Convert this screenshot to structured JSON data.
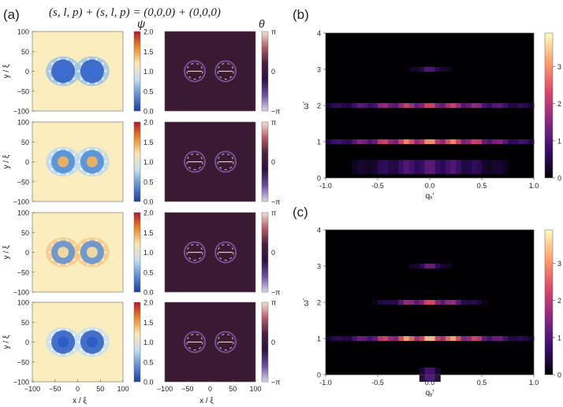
{
  "figure": {
    "panel_labels": {
      "a": "(a)",
      "b": "(b)",
      "c": "(c)"
    },
    "equation": "(s, l, p) + (s, l, p) = (0,0,0) + (0,0,0)"
  },
  "panel_a": {
    "ylabel": "y / ξ",
    "xlabel": "x / ξ",
    "x_ticks": [
      "−100",
      "−50",
      "0",
      "50",
      "100"
    ],
    "y_ticks": [
      "100",
      "50",
      "0",
      "−50",
      "−100"
    ],
    "psi_colorbar": {
      "label": "ψ",
      "ticks": [
        "2.0",
        "1.5",
        "1.0",
        "0.5",
        "0.0"
      ],
      "colors": [
        "#b2182b",
        "#e88a2c",
        "#fbe7b3",
        "#c6dff0",
        "#5b8fd0",
        "#1f3f9a"
      ]
    },
    "theta_colorbar": {
      "label": "θ",
      "ticks": [
        "π",
        "0",
        "−π"
      ],
      "colors": [
        "#f2e2d8",
        "#b45a66",
        "#4a1f3d",
        "#2a1240",
        "#6b4fa0",
        "#d8d8e8"
      ]
    },
    "rows": [
      {
        "psi_vortex_color": "#2b5cc4",
        "psi_halo": "#9ec4e6",
        "psi_core": "#3a6ed8"
      },
      {
        "psi_vortex_color": "#4a88d6",
        "psi_halo": "#bcd8ee",
        "psi_core": "#f6b25a"
      },
      {
        "psi_vortex_color": "#5b8fd0",
        "psi_halo": "#f3c98a",
        "psi_core": "#fbe0a0"
      },
      {
        "psi_vortex_color": "#2b5cc4",
        "psi_halo": "#c6dff0",
        "psi_core": "#2b5cc4"
      }
    ]
  },
  "chart_data": [
    {
      "type": "heatmap",
      "panel": "b",
      "xlabel": "qₓ'",
      "ylabel": "ω'",
      "xlim": [
        -1.0,
        1.0
      ],
      "ylim": [
        0,
        4
      ],
      "x_ticks": [
        "-1.0",
        "-0.5",
        "0.0",
        "0.5",
        "1.0"
      ],
      "y_ticks": [
        "0",
        "1",
        "2",
        "3",
        "4"
      ],
      "colorbar_ticks": [
        "0",
        "1",
        "2",
        "3"
      ],
      "colorbar_range": [
        0,
        3.9
      ],
      "colormap": [
        "#000004",
        "#3b0f70",
        "#8c2981",
        "#de4968",
        "#fe9f6d",
        "#fcfdbf"
      ],
      "bands": [
        {
          "omega": 1.0,
          "intensity": 3.2,
          "halfwidth_q": 1.0
        },
        {
          "omega": 2.0,
          "intensity": 2.4,
          "halfwidth_q": 1.0
        },
        {
          "omega": 3.0,
          "intensity": 1.1,
          "halfwidth_q": 0.2
        },
        {
          "omega": 0.3,
          "intensity": 1.2,
          "halfwidth_q": 0.75
        }
      ]
    },
    {
      "type": "heatmap",
      "panel": "c",
      "xlabel": "qᵧ'",
      "ylabel": "ω'",
      "xlim": [
        -1.0,
        1.0
      ],
      "ylim": [
        0,
        4
      ],
      "x_ticks": [
        "-1.0",
        "-0.5",
        "0.0",
        "0.5",
        "1.0"
      ],
      "y_ticks": [
        "0",
        "1",
        "2",
        "3",
        "4"
      ],
      "colorbar_ticks": [
        "0",
        "1",
        "2",
        "3"
      ],
      "colorbar_range": [
        0,
        3.9
      ],
      "colormap": [
        "#000004",
        "#3b0f70",
        "#8c2981",
        "#de4968",
        "#fe9f6d",
        "#fcfdbf"
      ],
      "bands": [
        {
          "omega": 1.0,
          "intensity": 3.6,
          "halfwidth_q": 0.85
        },
        {
          "omega": 2.0,
          "intensity": 2.5,
          "halfwidth_q": 0.45
        },
        {
          "omega": 3.0,
          "intensity": 1.4,
          "halfwidth_q": 0.18
        },
        {
          "omega": 0.0,
          "intensity": 1.0,
          "halfwidth_q": 0.12
        }
      ]
    }
  ]
}
